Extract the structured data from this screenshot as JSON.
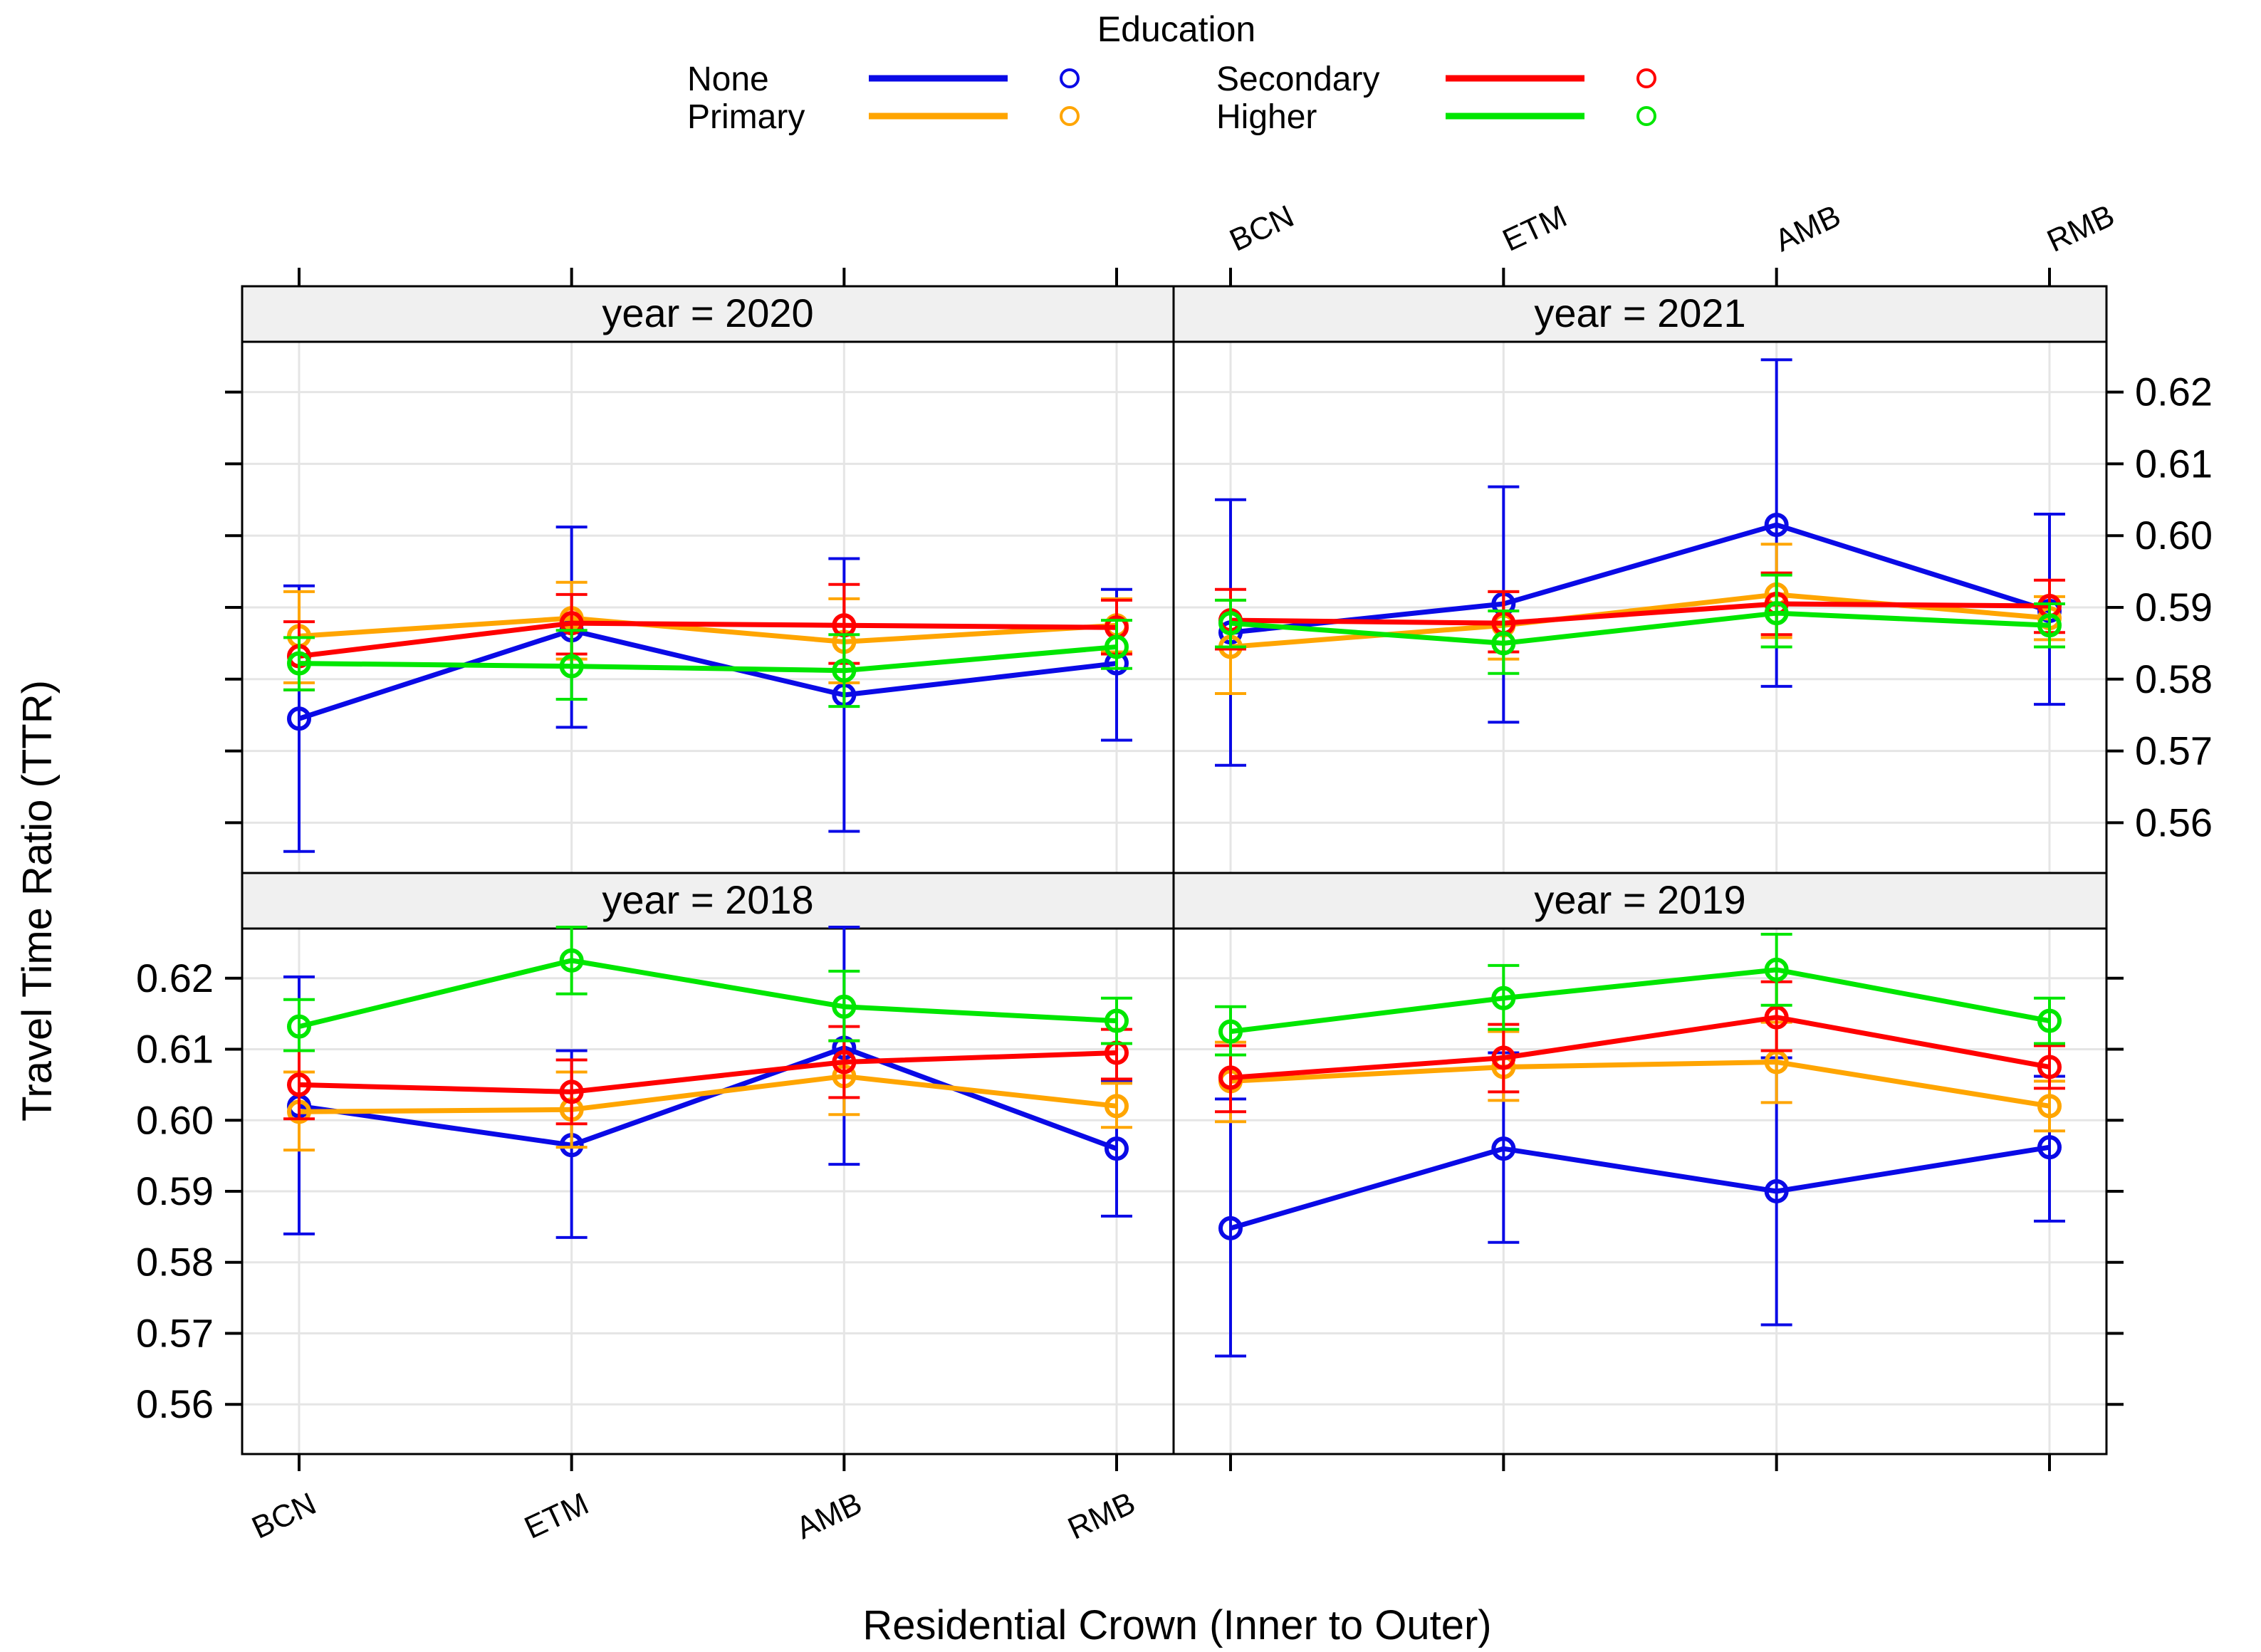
{
  "colors": {
    "None": "#0a0ae6",
    "Primary": "#ffa500",
    "Secondary": "#ff0000",
    "Higher": "#00e600",
    "strip_bg": "#f0f0f0",
    "grid": "#e5e5e5"
  },
  "chart_data": {
    "type": "line",
    "title": "",
    "xlabel": "Residential Crown (Inner to Outer)",
    "ylabel": "Travel Time Ratio (TTR)",
    "categories": [
      "BCN",
      "ETM",
      "AMB",
      "RMB"
    ],
    "ylim": [
      0.553,
      0.627
    ],
    "yticks": [
      0.56,
      0.57,
      0.58,
      0.59,
      0.6,
      0.61,
      0.62
    ],
    "ytick_labels": [
      "0.56",
      "0.57",
      "0.58",
      "0.59",
      "0.60",
      "0.61",
      "0.62"
    ],
    "legend": {
      "title": "Education",
      "position": "top",
      "entries": [
        "None",
        "Primary",
        "Secondary",
        "Higher"
      ]
    },
    "panels": [
      {
        "label": "year = 2020",
        "series": [
          {
            "name": "None",
            "values": [
              0.5745,
              0.5868,
              0.5778,
              0.5822
            ],
            "lower": [
              0.556,
              0.5733,
              0.5588,
              0.5715
            ],
            "upper": [
              0.593,
              0.6012,
              0.5968,
              0.5925
            ]
          },
          {
            "name": "Primary",
            "values": [
              0.586,
              0.5885,
              0.5852,
              0.5875
            ],
            "lower": [
              0.5795,
              0.5828,
              0.5795,
              0.5838
            ],
            "upper": [
              0.5922,
              0.5935,
              0.5912,
              0.5912
            ]
          },
          {
            "name": "Secondary",
            "values": [
              0.5832,
              0.5878,
              0.5875,
              0.5872
            ],
            "lower": [
              0.5785,
              0.5835,
              0.5822,
              0.5835
            ],
            "upper": [
              0.588,
              0.5918,
              0.5932,
              0.591
            ]
          },
          {
            "name": "Higher",
            "values": [
              0.5822,
              0.5818,
              0.5812,
              0.5845
            ],
            "lower": [
              0.5785,
              0.5772,
              0.5762,
              0.5815
            ],
            "upper": [
              0.5858,
              0.5868,
              0.5862,
              0.5882
            ]
          }
        ]
      },
      {
        "label": "year = 2021",
        "series": [
          {
            "name": "None",
            "values": [
              0.5865,
              0.5905,
              0.6015,
              0.5895
            ],
            "lower": [
              0.568,
              0.574,
              0.579,
              0.5765
            ],
            "upper": [
              0.605,
              0.6068,
              0.6245,
              0.603
            ]
          },
          {
            "name": "Primary",
            "values": [
              0.5845,
              0.5875,
              0.5918,
              0.5885
            ],
            "lower": [
              0.578,
              0.5828,
              0.5858,
              0.5855
            ],
            "upper": [
              0.591,
              0.5922,
              0.5988,
              0.5915
            ]
          },
          {
            "name": "Secondary",
            "values": [
              0.5882,
              0.5878,
              0.5905,
              0.5902
            ],
            "lower": [
              0.5842,
              0.5838,
              0.5862,
              0.5865
            ],
            "upper": [
              0.5925,
              0.5922,
              0.5948,
              0.5938
            ]
          },
          {
            "name": "Higher",
            "values": [
              0.5878,
              0.585,
              0.5892,
              0.5875
            ],
            "lower": [
              0.5845,
              0.5808,
              0.5845,
              0.5845
            ],
            "upper": [
              0.591,
              0.5895,
              0.5945,
              0.5905
            ]
          }
        ]
      },
      {
        "label": "year = 2018",
        "series": [
          {
            "name": "None",
            "values": [
              0.602,
              0.5965,
              0.6102,
              0.596
            ],
            "lower": [
              0.584,
              0.5835,
              0.5938,
              0.5865
            ],
            "upper": [
              0.6202,
              0.6098,
              0.6272,
              0.6055
            ]
          },
          {
            "name": "Primary",
            "values": [
              0.6012,
              0.6015,
              0.6062,
              0.602
            ],
            "lower": [
              0.5958,
              0.5962,
              0.6008,
              0.599
            ],
            "upper": [
              0.6068,
              0.6068,
              0.6112,
              0.6052
            ]
          },
          {
            "name": "Secondary",
            "values": [
              0.605,
              0.604,
              0.6082,
              0.6095
            ],
            "lower": [
              0.6002,
              0.5995,
              0.6032,
              0.6058
            ],
            "upper": [
              0.6098,
              0.6085,
              0.6132,
              0.6128
            ]
          },
          {
            "name": "Higher",
            "values": [
              0.6132,
              0.6225,
              0.616,
              0.614
            ],
            "lower": [
              0.6098,
              0.6178,
              0.6112,
              0.6108
            ],
            "upper": [
              0.617,
              0.6272,
              0.621,
              0.6172
            ]
          }
        ]
      },
      {
        "label": "year = 2019",
        "series": [
          {
            "name": "None",
            "values": [
              0.5848,
              0.596,
              0.59,
              0.5962
            ],
            "lower": [
              0.5668,
              0.5828,
              0.5712,
              0.5858
            ],
            "upper": [
              0.603,
              0.6095,
              0.6088,
              0.6062
            ]
          },
          {
            "name": "Primary",
            "values": [
              0.6055,
              0.6075,
              0.6082,
              0.602
            ],
            "lower": [
              0.5998,
              0.6028,
              0.6025,
              0.5985
            ],
            "upper": [
              0.611,
              0.6125,
              0.6138,
              0.6055
            ]
          },
          {
            "name": "Secondary",
            "values": [
              0.606,
              0.6088,
              0.6145,
              0.6075
            ],
            "lower": [
              0.6012,
              0.604,
              0.6098,
              0.6045
            ],
            "upper": [
              0.6105,
              0.6135,
              0.6195,
              0.6105
            ]
          },
          {
            "name": "Higher",
            "values": [
              0.6125,
              0.6172,
              0.6212,
              0.614
            ],
            "lower": [
              0.6092,
              0.6128,
              0.6162,
              0.6108
            ],
            "upper": [
              0.616,
              0.6218,
              0.6262,
              0.6172
            ]
          }
        ]
      }
    ]
  }
}
